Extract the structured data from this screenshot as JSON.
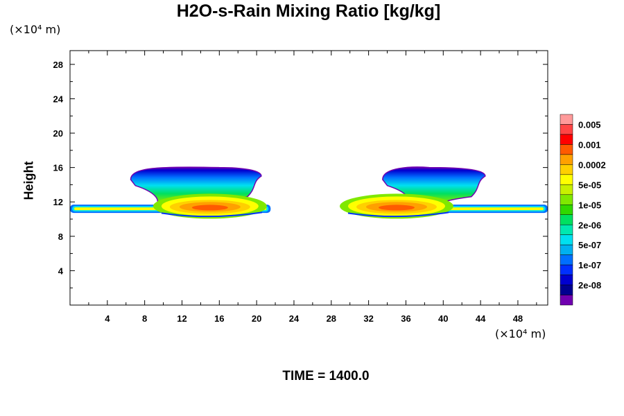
{
  "chart_data": {
    "type": "heatmap",
    "title": "H2O-s-Rain Mixing Ratio [kg/kg]",
    "ylabel": "Height",
    "xlabel": "",
    "x_unit": "(×10⁴ m)",
    "y_unit": "(×10⁴ m)",
    "x_ticks": [
      4,
      8,
      12,
      16,
      20,
      24,
      28,
      32,
      36,
      40,
      44,
      48
    ],
    "y_ticks": [
      4,
      8,
      12,
      16,
      20,
      24,
      28
    ],
    "xlim": [
      0,
      51.2
    ],
    "ylim": [
      0,
      29.6
    ],
    "time_label": "TIME = 1400.0",
    "colorbar": {
      "labels": [
        "0.005",
        "0.001",
        "0.0002",
        "5e-05",
        "1e-05",
        "2e-06",
        "5e-07",
        "1e-07",
        "2e-08"
      ],
      "colors": [
        "#ff9a9a",
        "#ff4545",
        "#ff0000",
        "#ff5a00",
        "#ffa000",
        "#ffd000",
        "#ffff00",
        "#c8f000",
        "#80e800",
        "#30d800",
        "#00e060",
        "#00e8b0",
        "#00e0f0",
        "#00b0f0",
        "#0070ff",
        "#0030ff",
        "#0000d0",
        "#000090",
        "#7000b0"
      ]
    },
    "cells": [
      {
        "name": "left-cloud",
        "anvil_base": 13.2,
        "anvil_top": 16.0,
        "anvil_x": [
          6.5,
          16,
          20.5
        ],
        "outflow_level": 11.2,
        "outflow_x": [
          0,
          21.5
        ],
        "core_x": 15,
        "core_level": 11.5
      },
      {
        "name": "right-cloud",
        "anvil_base": 13.2,
        "anvil_top": 16.0,
        "anvil_x": [
          33.5,
          38.5,
          44.5
        ],
        "outflow_level": 11.2,
        "outflow_x": [
          29.8,
          51.2
        ],
        "core_x": 35,
        "core_level": 11.5
      }
    ]
  }
}
